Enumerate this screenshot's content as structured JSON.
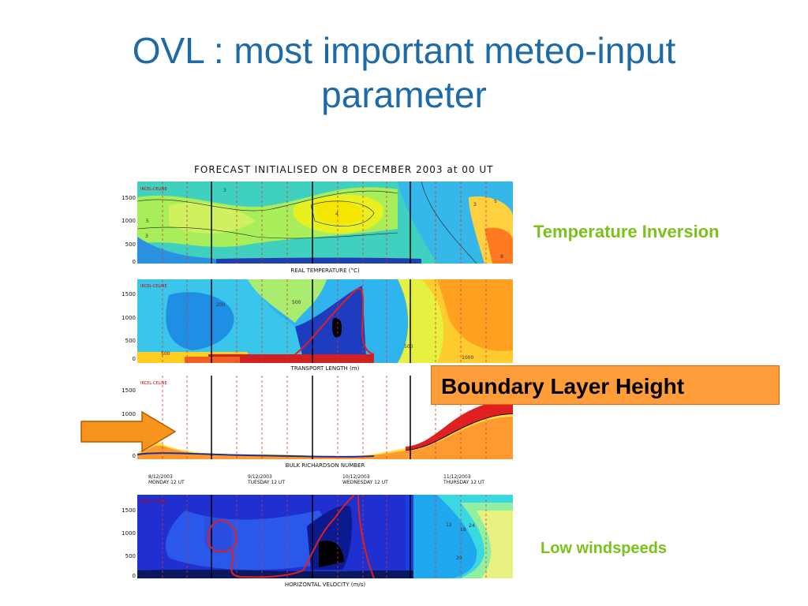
{
  "slide": {
    "title_line1": "OVL : most important meteo-input",
    "title_line2": "parameter"
  },
  "figure": {
    "title": "FORECAST INITIALISED ON  8 DECEMBER 2003 at 00 UT",
    "site": "IRCEL-CELINE",
    "y_ticks": [
      "1500",
      "1000",
      "500",
      "0"
    ],
    "panels": [
      {
        "name": "REAL TEMPERATURE (°C)",
        "contour_labels": [
          "3",
          "5",
          "3",
          "4",
          "5",
          "3",
          "8"
        ]
      },
      {
        "name": "TRANSPORT LENGTH (m)",
        "contour_labels": [
          "200",
          "500",
          "500",
          "500",
          "1000"
        ]
      },
      {
        "name": "BULK RICHARDSON NUMBER",
        "contour_labels": []
      },
      {
        "name": "HORIZONTAL VELOCITY (m/s)",
        "contour_labels": [
          "12",
          "18",
          "24",
          "20"
        ]
      }
    ],
    "dates": [
      {
        "date": "8/12/2003",
        "day": "MONDAY 12 UT"
      },
      {
        "date": "9/12/2003",
        "day": "TUESDAY 12 UT"
      },
      {
        "date": "10/12/2003",
        "day": "WEDNESDAY 12 UT"
      },
      {
        "date": "11/12/2003",
        "day": "THURSDAY 12 UT"
      }
    ]
  },
  "annotations": {
    "temperature_inversion": "Temperature Inversion",
    "boundary_layer_height": "Boundary Layer Height",
    "low_windspeeds": "Low windspeeds",
    "arrow_icon": "right-arrow-icon",
    "colors": {
      "title": "#1d6aa6",
      "green_note": "#7ac21a",
      "box": "#ff9d3a",
      "arrow": "#f7941d"
    }
  }
}
